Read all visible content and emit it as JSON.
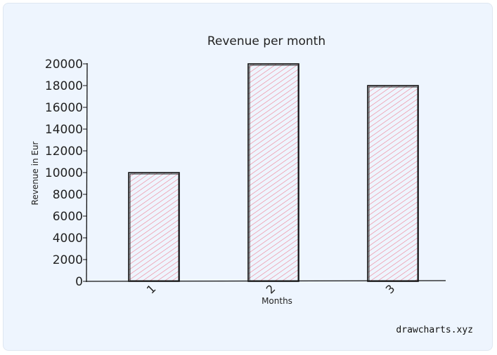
{
  "chart_data": {
    "type": "bar",
    "title": "Revenue per month",
    "xlabel": "Months",
    "ylabel": "Revenue in Eur",
    "categories": [
      "1",
      "2",
      "3"
    ],
    "values": [
      10000,
      20000,
      18000
    ],
    "ylim": [
      0,
      20000
    ],
    "yticks": [
      "0",
      "2000",
      "4000",
      "6000",
      "8000",
      "10000",
      "12000",
      "14000",
      "16000",
      "18000",
      "20000"
    ],
    "grid": false,
    "bar_fill_color": "#f08a9b",
    "bar_stroke_color": "#111111"
  },
  "footer": {
    "watermark": "drawcharts.xyz"
  }
}
